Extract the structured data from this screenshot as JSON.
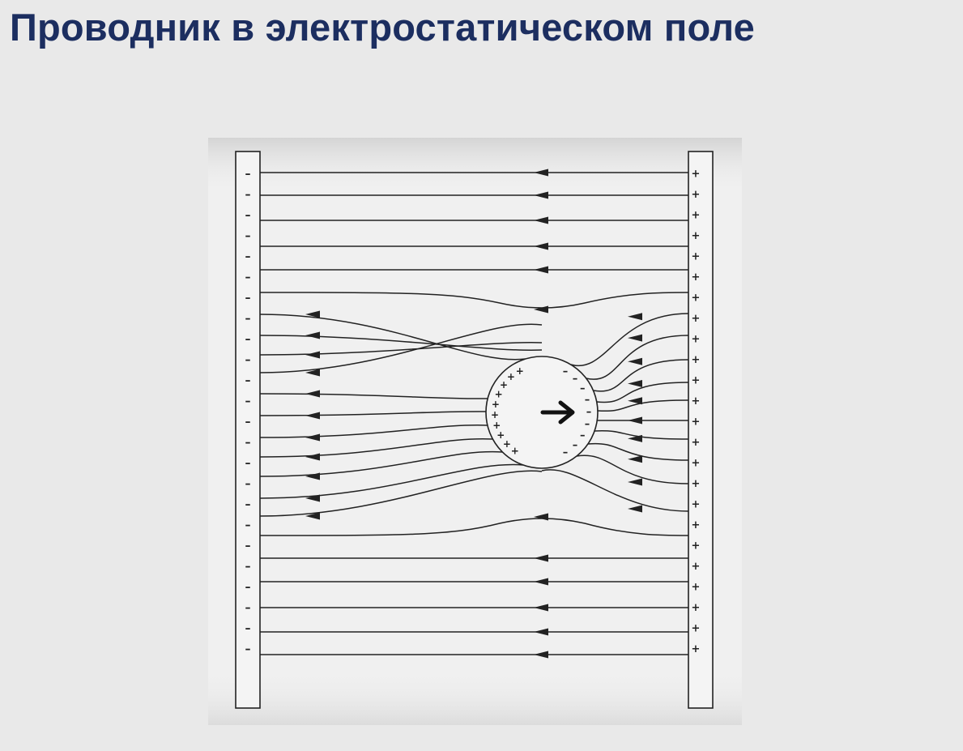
{
  "slide": {
    "title": "Проводник в электростатическом поле"
  },
  "diagram": {
    "left_plate_sign": "–",
    "right_plate_sign": "+",
    "sphere_left_sign": "+",
    "sphere_right_sign": "–",
    "colors": {
      "title": "#1c2e60",
      "background": "#e9e9e9",
      "panel": "#f0f0f0",
      "line": "#222222"
    }
  }
}
